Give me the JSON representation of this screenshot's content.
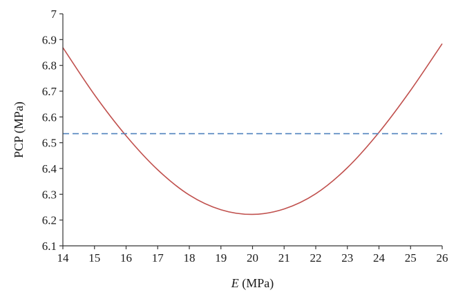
{
  "chart_data": {
    "type": "line",
    "title": "",
    "xlabel": {
      "italic": "E",
      "rest": " (MPa)"
    },
    "ylabel": "PCP (MPa)",
    "xlim": [
      14,
      26
    ],
    "ylim": [
      6.1,
      7.0
    ],
    "xticks": [
      "14",
      "15",
      "16",
      "17",
      "18",
      "19",
      "20",
      "21",
      "22",
      "23",
      "24",
      "25",
      "26"
    ],
    "yticks": [
      "6.1",
      "6.2",
      "6.3",
      "6.4",
      "6.5",
      "6.6",
      "6.7",
      "6.8",
      "6.9",
      "7"
    ],
    "grid": false,
    "legend": "none",
    "series": [
      {
        "style": "solid",
        "color": "#c0504d",
        "x": [
          14,
          15,
          16,
          17,
          18,
          19,
          20,
          21,
          22,
          23,
          24,
          25,
          26
        ],
        "y": [
          6.869,
          6.686,
          6.527,
          6.395,
          6.297,
          6.24,
          6.222,
          6.243,
          6.302,
          6.403,
          6.54,
          6.703,
          6.884
        ]
      },
      {
        "style": "dashed",
        "color": "#4f81bd",
        "x": [
          14,
          26
        ],
        "y": [
          6.535,
          6.535
        ]
      }
    ]
  }
}
